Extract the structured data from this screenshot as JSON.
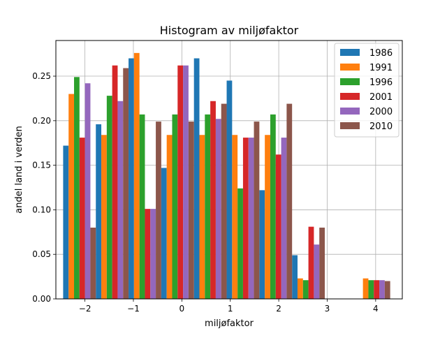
{
  "chart_data": {
    "type": "bar",
    "title": "Histogram av miljøfaktor",
    "xlabel": "miljøfaktor",
    "ylabel": "andel land i verden",
    "xlim": [
      -2.6,
      4.55
    ],
    "ylim": [
      0,
      0.29
    ],
    "grid": true,
    "legend_position": "top-right",
    "bin_starts": [
      -2.45,
      -1.775,
      -1.1,
      -0.425,
      0.25,
      0.925,
      1.6,
      2.275,
      2.95,
      3.625
    ],
    "bin_width": 0.675,
    "xticks": [
      -2,
      -1,
      0,
      1,
      2,
      3,
      4
    ],
    "xtick_labels": [
      "−2",
      "−1",
      "0",
      "1",
      "2",
      "3",
      "4"
    ],
    "yticks": [
      0,
      0.05,
      0.1,
      0.15,
      0.2,
      0.25
    ],
    "ytick_labels": [
      "0.00",
      "0.05",
      "0.10",
      "0.15",
      "0.20",
      "0.25"
    ],
    "series": [
      {
        "name": "1986",
        "color": "#1f77b4",
        "values": [
          0.172,
          0.196,
          0.27,
          0.147,
          0.27,
          0.245,
          0.122,
          0.049,
          0,
          0
        ]
      },
      {
        "name": "1991",
        "color": "#ff7f0e",
        "values": [
          0.23,
          0.184,
          0.276,
          0.184,
          0.184,
          0.184,
          0.184,
          0.023,
          0,
          0.023
        ]
      },
      {
        "name": "1996",
        "color": "#2ca02c",
        "values": [
          0.249,
          0.228,
          0.207,
          0.207,
          0.207,
          0.124,
          0.207,
          0.021,
          0,
          0.021
        ]
      },
      {
        "name": "2001",
        "color": "#d62728",
        "values": [
          0.181,
          0.262,
          0.101,
          0.262,
          0.222,
          0.181,
          0.162,
          0.081,
          0,
          0.021
        ]
      },
      {
        "name": "2000",
        "color": "#9467bd",
        "values": [
          0.242,
          0.222,
          0.101,
          0.262,
          0.202,
          0.181,
          0.181,
          0.061,
          0,
          0.021
        ]
      },
      {
        "name": "2010",
        "color": "#8c564b",
        "values": [
          0.08,
          0.259,
          0.199,
          0.199,
          0.219,
          0.199,
          0.219,
          0.08,
          0,
          0.02
        ]
      }
    ]
  }
}
